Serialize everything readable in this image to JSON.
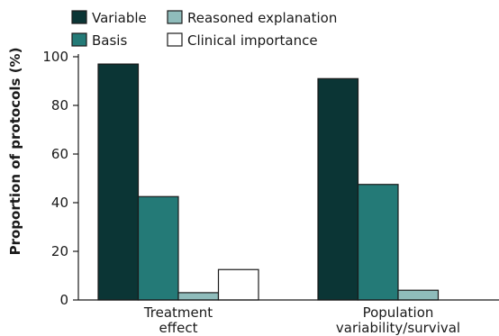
{
  "chart_data": {
    "type": "bar",
    "categories": [
      [
        "Treatment",
        "effect"
      ],
      [
        "Population",
        "variability/survival"
      ]
    ],
    "series": [
      {
        "name": "Variable",
        "values": [
          97,
          91
        ],
        "color": "#0b3535"
      },
      {
        "name": "Basis",
        "values": [
          42.5,
          47.5
        ],
        "color": "#247a77"
      },
      {
        "name": "Reasoned explanation",
        "values": [
          3,
          4
        ],
        "color": "#8fbcbb"
      },
      {
        "name": "Clinical importance",
        "values": [
          12.5,
          0
        ],
        "color": "#ffffff"
      }
    ],
    "ylabel": "Proportion of protocols (%)",
    "ylim": [
      0,
      100
    ],
    "yticks": [
      0,
      20,
      40,
      60,
      80,
      100
    ],
    "grid": false,
    "legend_position": "top-left"
  }
}
